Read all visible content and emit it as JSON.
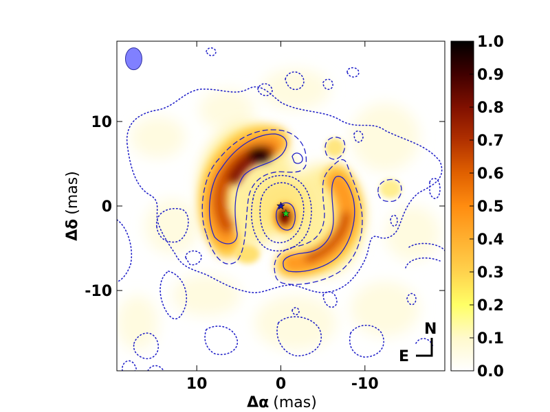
{
  "chart_data": {
    "type": "heatmap",
    "title": "",
    "xlabel": {
      "symbol": "Δα",
      "unit": "(mas)"
    },
    "ylabel": {
      "symbol": "Δδ",
      "unit": "(mas)"
    },
    "xlim": [
      19.5,
      -19.5
    ],
    "ylim": [
      -19.5,
      19.5
    ],
    "x_ticks": [
      {
        "value": 10,
        "label": "10"
      },
      {
        "value": 0,
        "label": "0"
      },
      {
        "value": -10,
        "label": "-10"
      }
    ],
    "y_ticks": [
      {
        "value": 10,
        "label": "10"
      },
      {
        "value": 0,
        "label": "0"
      },
      {
        "value": -10,
        "label": "-10"
      }
    ],
    "colorbar": {
      "range": [
        0.0,
        1.0
      ],
      "colormap": "afmhot_r",
      "ticks": [
        "0.0",
        "0.1",
        "0.2",
        "0.3",
        "0.4",
        "0.5",
        "0.6",
        "0.7",
        "0.8",
        "0.9",
        "1.0"
      ]
    },
    "features": [
      {
        "name": "NE arc",
        "x": 5.5,
        "y": 3.0,
        "peak": 1.0
      },
      {
        "name": "SW arc",
        "x": -5.5,
        "y": -2.0,
        "peak": 0.7
      },
      {
        "name": "central source",
        "x": -0.3,
        "y": -1.3,
        "peak": 0.8
      }
    ],
    "markers": [
      {
        "name": "blue star",
        "x": 0.0,
        "y": 0.0,
        "color": "#1a1aa0"
      },
      {
        "name": "green star",
        "x": -0.6,
        "y": -0.9,
        "color": "#22cc22"
      }
    ],
    "contour_color": "#2020c8",
    "beam": {
      "x": 17.5,
      "y": 17.5,
      "major": 2.5,
      "minor": 2.0,
      "color": "#8080ff"
    },
    "compass": {
      "north": "N",
      "east": "E"
    },
    "grid": false
  }
}
